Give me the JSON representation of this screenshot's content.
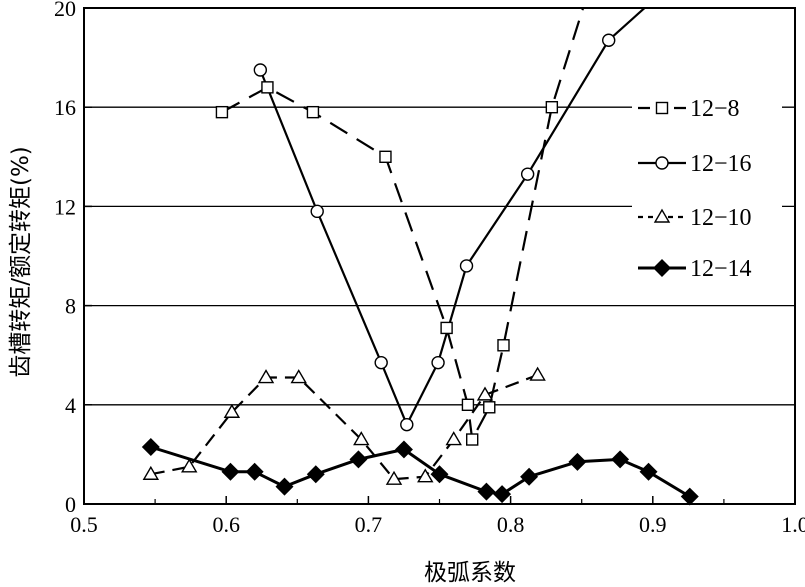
{
  "chart_data": {
    "type": "line",
    "title": "",
    "xlabel": "极弧系数",
    "ylabel": "齿槽转矩/额定转矩(%)",
    "xlim": [
      0.5,
      1.0
    ],
    "ylim": [
      0,
      20
    ],
    "xticks": [
      0.5,
      0.6,
      0.7,
      0.8,
      0.9,
      1.0
    ],
    "xtick_labels": [
      "0.5",
      "0.6",
      "0.7",
      "0.8",
      "0.9",
      "1.0"
    ],
    "yticks": [
      0,
      4,
      8,
      12,
      16,
      20
    ],
    "ytick_labels": [
      "0",
      "4",
      "8",
      "12",
      "16",
      "20"
    ],
    "grid": "horizontal",
    "legend_position": "right",
    "series": [
      {
        "name": "12−8",
        "marker": "square",
        "line": "dashed",
        "fill": "#ffffff",
        "x": [
          0.597,
          0.629,
          0.661,
          0.712,
          0.755,
          0.77,
          0.773,
          0.785,
          0.795,
          0.829,
          0.851
        ],
        "y": [
          15.8,
          16.8,
          15.8,
          14.0,
          7.1,
          4.0,
          2.6,
          3.9,
          6.4,
          16.0,
          20.0
        ],
        "markers": [
          true,
          true,
          true,
          true,
          true,
          true,
          true,
          true,
          true,
          true,
          false
        ]
      },
      {
        "name": "12−16",
        "marker": "circle",
        "line": "solid",
        "fill": "#ffffff",
        "x": [
          0.624,
          0.664,
          0.709,
          0.727,
          0.749,
          0.769,
          0.812,
          0.869,
          0.9
        ],
        "y": [
          17.5,
          11.8,
          5.7,
          3.2,
          5.7,
          9.6,
          13.3,
          18.7,
          20.3
        ],
        "markers": [
          true,
          true,
          true,
          true,
          true,
          true,
          true,
          true,
          false
        ]
      },
      {
        "name": "12−10",
        "marker": "triangle",
        "line": "dashed",
        "fill": "#ffffff",
        "x": [
          0.547,
          0.574,
          0.604,
          0.628,
          0.651,
          0.695,
          0.718,
          0.74,
          0.76,
          0.782,
          0.819
        ],
        "y": [
          1.2,
          1.5,
          3.7,
          5.1,
          5.1,
          2.6,
          1.0,
          1.1,
          2.6,
          4.4,
          5.2
        ],
        "markers": [
          true,
          true,
          true,
          true,
          true,
          true,
          true,
          true,
          true,
          true,
          true
        ]
      },
      {
        "name": "12−14",
        "marker": "diamond",
        "line": "solid",
        "fill": "#000000",
        "x": [
          0.547,
          0.603,
          0.62,
          0.641,
          0.663,
          0.693,
          0.725,
          0.75,
          0.783,
          0.794,
          0.813,
          0.847,
          0.877,
          0.897,
          0.926
        ],
        "y": [
          2.3,
          1.3,
          1.3,
          0.7,
          1.2,
          1.8,
          2.2,
          1.2,
          0.5,
          0.4,
          1.1,
          1.7,
          1.8,
          1.3,
          0.3
        ],
        "markers": [
          true,
          true,
          true,
          true,
          true,
          true,
          true,
          true,
          true,
          true,
          true,
          true,
          true,
          true,
          true
        ]
      }
    ]
  }
}
